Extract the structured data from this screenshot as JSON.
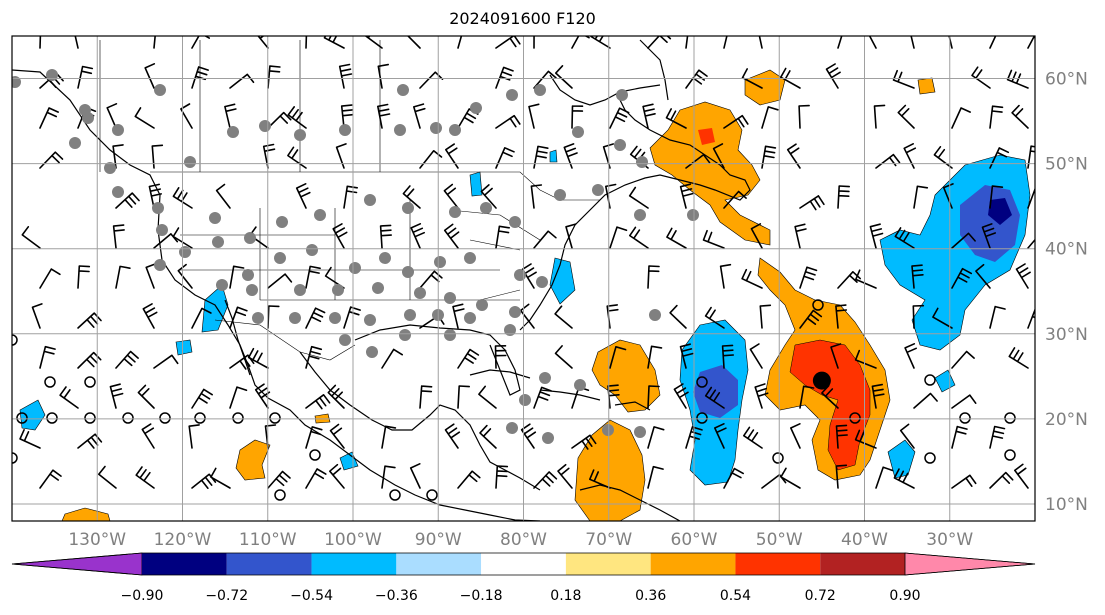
{
  "title": "2024091600 F120",
  "map": {
    "projection": "plate-carree",
    "lon_range": [
      -140,
      -20
    ],
    "lat_range": [
      8,
      65
    ],
    "lat_ticks": [
      {
        "value": 60,
        "label": "60°N"
      },
      {
        "value": 50,
        "label": "50°N"
      },
      {
        "value": 40,
        "label": "40°N"
      },
      {
        "value": 30,
        "label": "30°N"
      },
      {
        "value": 20,
        "label": "20°N"
      },
      {
        "value": 10,
        "label": "10°N"
      }
    ],
    "lon_ticks": [
      {
        "value": -130,
        "label": "130°W"
      },
      {
        "value": -120,
        "label": "120°W"
      },
      {
        "value": -110,
        "label": "110°W"
      },
      {
        "value": -100,
        "label": "100°W"
      },
      {
        "value": -90,
        "label": "90°W"
      },
      {
        "value": -80,
        "label": "80°W"
      },
      {
        "value": -70,
        "label": "70°W"
      },
      {
        "value": -60,
        "label": "60°W"
      },
      {
        "value": -50,
        "label": "50°W"
      },
      {
        "value": -40,
        "label": "40°W"
      },
      {
        "value": -30,
        "label": "30°W"
      }
    ],
    "gridlines": true,
    "marked_point": {
      "lon": -45,
      "lat": 24.5
    }
  },
  "colorbar": {
    "ticks": [
      "−0.90",
      "−0.72",
      "−0.54",
      "−0.36",
      "−0.18",
      "0.18",
      "0.36",
      "0.54",
      "0.72",
      "0.90"
    ],
    "colors": [
      "#9933cc",
      "#000080",
      "#3355cc",
      "#00bbff",
      "#aaddff",
      "#ffffff",
      "#ffe680",
      "#ffa500",
      "#ff3300",
      "#b22222",
      "#ff88aa"
    ],
    "extend": "both"
  },
  "colors": {
    "positive_fill": "#ffa500",
    "strong_positive": "#ff3300",
    "negative_fill": "#00bbff",
    "strong_negative": "#3355cc",
    "gridline": "#a0a0a0",
    "station_dot": "#808080"
  }
}
